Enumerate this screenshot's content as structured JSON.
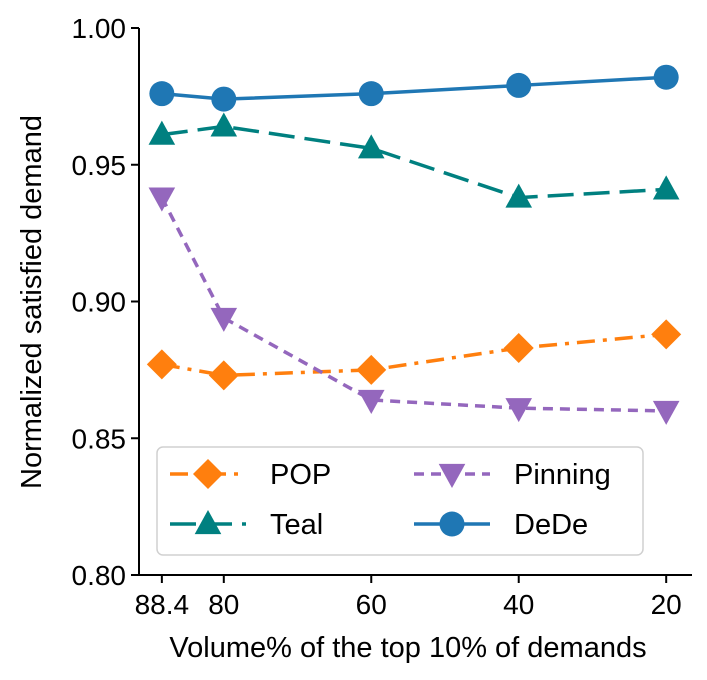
{
  "chart_data": {
    "type": "line",
    "title": "",
    "xlabel": "Volume% of the top 10% of demands",
    "ylabel": "Normalized satisfied demand",
    "x": [
      88.4,
      80,
      60,
      40,
      20
    ],
    "x_tick_labels": [
      "88.4",
      "80",
      "60",
      "40",
      "20"
    ],
    "x_reversed": true,
    "xlim": [
      91.5,
      16.5
    ],
    "ylim": [
      0.8,
      1.0
    ],
    "y_ticks": [
      0.8,
      0.85,
      0.9,
      0.95,
      1.0
    ],
    "y_tick_labels": [
      "0.80",
      "0.85",
      "0.90",
      "0.95",
      "1.00"
    ],
    "grid": false,
    "legend_position": "lower-left",
    "legend_columns": 2,
    "series": [
      {
        "name": "POP",
        "values": [
          0.877,
          0.873,
          0.875,
          0.883,
          0.888
        ],
        "color": "#ff7f0e",
        "marker": "diamond",
        "line_style": "dash-dot"
      },
      {
        "name": "Teal",
        "values": [
          0.961,
          0.964,
          0.956,
          0.938,
          0.941
        ],
        "color": "#008080",
        "marker": "triangle-up",
        "line_style": "long-dash"
      },
      {
        "name": "Pinning",
        "values": [
          0.938,
          0.894,
          0.864,
          0.861,
          0.86
        ],
        "color": "#9467bd",
        "marker": "triangle-down",
        "line_style": "short-dash"
      },
      {
        "name": "DeDe",
        "values": [
          0.976,
          0.974,
          0.976,
          0.979,
          0.982
        ],
        "color": "#1f77b4",
        "marker": "circle",
        "line_style": "solid"
      }
    ],
    "legend_order": [
      "POP",
      "Teal",
      "Pinning",
      "DeDe"
    ]
  }
}
